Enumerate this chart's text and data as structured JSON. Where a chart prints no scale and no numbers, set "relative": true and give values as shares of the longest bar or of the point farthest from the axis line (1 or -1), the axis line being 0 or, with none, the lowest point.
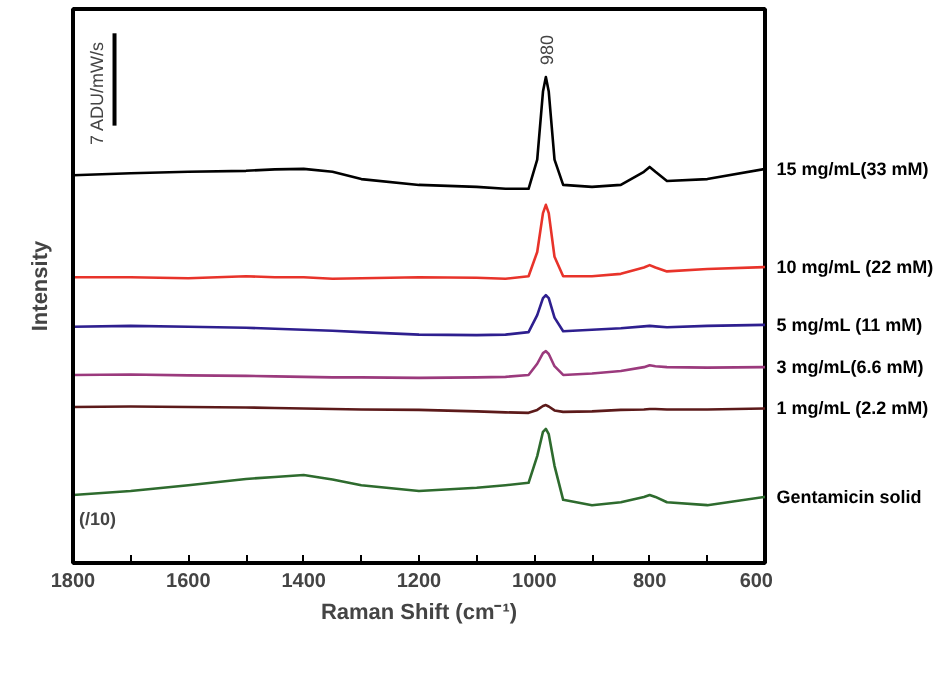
{
  "chart_data": {
    "type": "line",
    "xlabel": "Raman Shift (cm⁻¹)",
    "ylabel": "Intensity",
    "relative": true,
    "legend": false,
    "grid": false,
    "xlim": [
      1800,
      600
    ],
    "xticks": [
      1800,
      {
        "value": 1700,
        "label": null
      },
      1600,
      {
        "value": 1500,
        "label": null
      },
      1400,
      {
        "value": 1300,
        "label": null
      },
      1200,
      {
        "value": 1100,
        "label": null
      },
      1000,
      {
        "value": 900,
        "label": null
      },
      800,
      {
        "value": 700,
        "label": null
      },
      600
    ],
    "x": [
      1800,
      1700,
      1600,
      1500,
      1450,
      1400,
      1350,
      1300,
      1200,
      1100,
      1050,
      1010,
      995,
      985,
      980,
      975,
      965,
      950,
      900,
      850,
      810,
      800,
      790,
      770,
      700,
      600
    ],
    "series": [
      {
        "name": "15 mg/mL(33 mM)",
        "color": "#000000",
        "values": [
          0.798,
          0.802,
          0.805,
          0.807,
          0.81,
          0.811,
          0.805,
          0.79,
          0.778,
          0.774,
          0.77,
          0.77,
          0.83,
          0.97,
          1.0,
          0.97,
          0.83,
          0.778,
          0.774,
          0.778,
          0.805,
          0.815,
          0.805,
          0.786,
          0.79,
          0.811
        ]
      },
      {
        "name": "10 mg/mL (22 mM)",
        "color": "#e8332a",
        "values": [
          0.588,
          0.588,
          0.586,
          0.59,
          0.588,
          0.588,
          0.585,
          0.586,
          0.588,
          0.587,
          0.585,
          0.59,
          0.64,
          0.72,
          0.737,
          0.72,
          0.63,
          0.59,
          0.59,
          0.595,
          0.608,
          0.613,
          0.608,
          0.6,
          0.605,
          0.609
        ]
      },
      {
        "name": "5 mg/mL (11 mM)",
        "color": "#2e1f8f",
        "values": [
          0.486,
          0.488,
          0.486,
          0.484,
          0.482,
          0.48,
          0.478,
          0.475,
          0.47,
          0.469,
          0.47,
          0.475,
          0.51,
          0.545,
          0.551,
          0.545,
          0.505,
          0.477,
          0.48,
          0.483,
          0.487,
          0.488,
          0.487,
          0.485,
          0.488,
          0.49
        ]
      },
      {
        "name": "3 mg/mL(6.6 mM)",
        "color": "#9b3a7d",
        "values": [
          0.387,
          0.388,
          0.386,
          0.385,
          0.384,
          0.383,
          0.382,
          0.382,
          0.381,
          0.382,
          0.383,
          0.387,
          0.41,
          0.432,
          0.436,
          0.43,
          0.405,
          0.387,
          0.39,
          0.395,
          0.403,
          0.407,
          0.405,
          0.403,
          0.402,
          0.403
        ]
      },
      {
        "name": "1 mg/mL (2.2 mM)",
        "color": "#5c1a1a",
        "values": [
          0.321,
          0.322,
          0.321,
          0.32,
          0.319,
          0.318,
          0.317,
          0.316,
          0.315,
          0.312,
          0.31,
          0.309,
          0.315,
          0.323,
          0.325,
          0.322,
          0.314,
          0.311,
          0.312,
          0.315,
          0.316,
          0.317,
          0.317,
          0.316,
          0.316,
          0.318
        ]
      },
      {
        "name": "Gentamicin solid",
        "color": "#2e6b2e",
        "values": [
          0.14,
          0.148,
          0.16,
          0.173,
          0.177,
          0.181,
          0.172,
          0.16,
          0.148,
          0.155,
          0.16,
          0.165,
          0.22,
          0.27,
          0.276,
          0.265,
          0.2,
          0.13,
          0.119,
          0.125,
          0.136,
          0.14,
          0.136,
          0.125,
          0.119,
          0.136
        ]
      }
    ],
    "annotations": [
      "980",
      "7 ADU/mW/s",
      "(/10)"
    ]
  }
}
